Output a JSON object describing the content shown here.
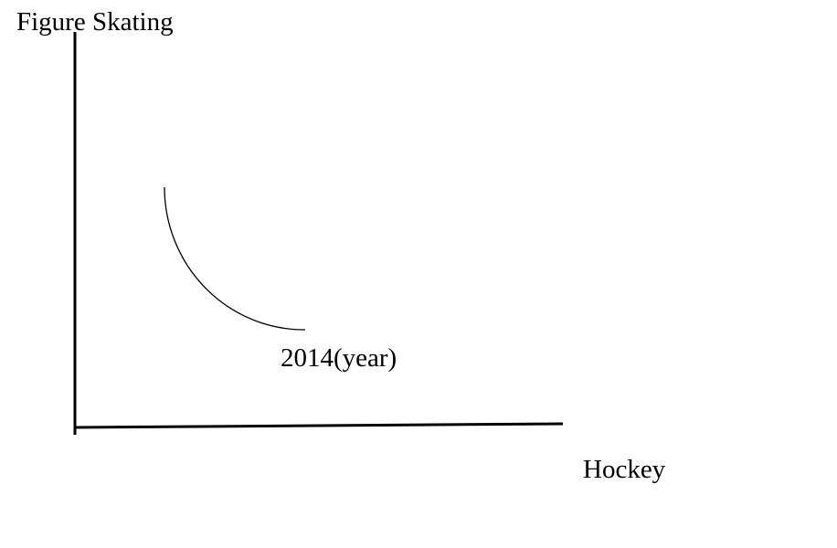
{
  "y_axis": {
    "label": "Figure Skating"
  },
  "x_axis": {
    "label": "Hockey"
  },
  "curve": {
    "label": "2014(year)"
  }
}
